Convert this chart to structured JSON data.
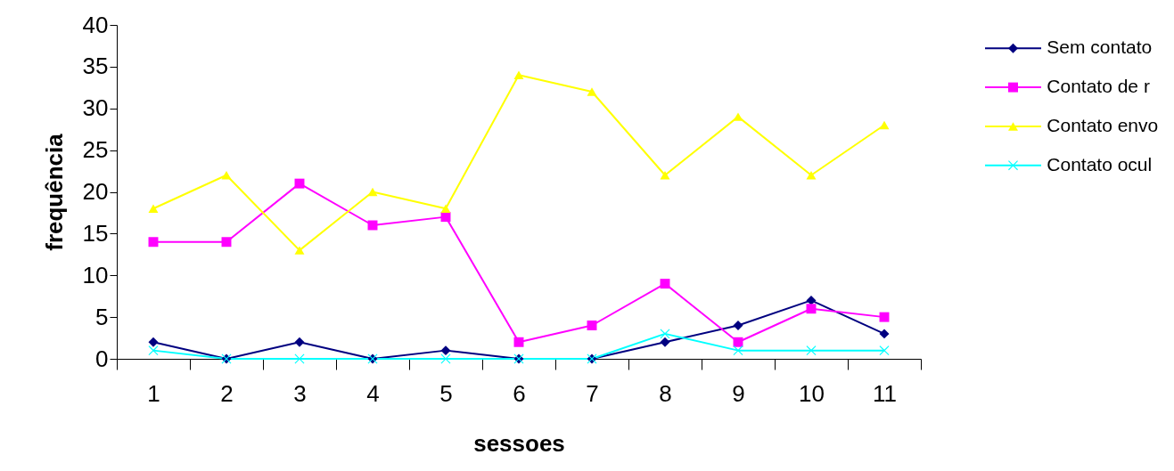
{
  "chart_data": {
    "type": "line",
    "xlabel": "sessoes",
    "ylabel": "frequência",
    "categories": [
      "1",
      "2",
      "3",
      "4",
      "5",
      "6",
      "7",
      "8",
      "9",
      "10",
      "11"
    ],
    "series": [
      {
        "name": "Sem contato",
        "color": "#000080",
        "marker": "diamond",
        "values": [
          2,
          0,
          2,
          0,
          1,
          0,
          0,
          2,
          4,
          7,
          3
        ]
      },
      {
        "name": "Contato de r",
        "color": "#ff00ff",
        "marker": "square",
        "values": [
          14,
          14,
          21,
          16,
          17,
          2,
          4,
          9,
          2,
          6,
          5
        ]
      },
      {
        "name": "Contato envo",
        "color": "#ffff00",
        "marker": "triangle",
        "values": [
          18,
          22,
          13,
          20,
          18,
          34,
          32,
          22,
          29,
          22,
          28
        ]
      },
      {
        "name": "Contato ocul",
        "color": "#00ffff",
        "marker": "cross",
        "values": [
          1,
          0,
          0,
          0,
          0,
          0,
          0,
          3,
          1,
          1,
          1
        ]
      }
    ],
    "ylim": [
      0,
      40
    ],
    "yticks": [
      0,
      5,
      10,
      15,
      20,
      25,
      30,
      35,
      40
    ],
    "grid": false,
    "legend": "top right"
  }
}
